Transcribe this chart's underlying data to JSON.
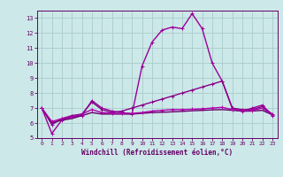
{
  "xlabel": "Windchill (Refroidissement éolien,°C)",
  "x": [
    0,
    1,
    2,
    3,
    4,
    5,
    6,
    7,
    8,
    9,
    10,
    11,
    12,
    13,
    14,
    15,
    16,
    17,
    18,
    19,
    20,
    21,
    22,
    23
  ],
  "series": [
    {
      "y": [
        7.0,
        5.3,
        6.2,
        6.4,
        6.5,
        7.5,
        7.0,
        6.8,
        6.7,
        6.6,
        9.8,
        11.4,
        12.2,
        12.4,
        12.3,
        13.3,
        12.3,
        10.0,
        8.8,
        7.0,
        6.8,
        7.0,
        7.2,
        6.5
      ],
      "color": "#990099",
      "lw": 1.0,
      "marker": "+"
    },
    {
      "y": [
        7.0,
        5.9,
        6.3,
        6.5,
        6.6,
        7.4,
        6.9,
        6.7,
        6.8,
        7.0,
        7.2,
        7.4,
        7.6,
        7.8,
        8.0,
        8.2,
        8.4,
        8.6,
        8.8,
        7.0,
        6.9,
        6.9,
        7.1,
        6.6
      ],
      "color": "#880088",
      "lw": 1.0,
      "marker": "+"
    },
    {
      "y": [
        7.0,
        6.0,
        6.2,
        6.3,
        6.5,
        6.7,
        6.6,
        6.6,
        6.6,
        6.6,
        6.65,
        6.7,
        6.72,
        6.75,
        6.78,
        6.82,
        6.85,
        6.88,
        6.9,
        6.85,
        6.8,
        6.8,
        6.85,
        6.55
      ],
      "color": "#660066",
      "lw": 1.0,
      "marker": null
    },
    {
      "y": [
        7.0,
        6.1,
        6.3,
        6.4,
        6.6,
        6.9,
        6.7,
        6.65,
        6.65,
        6.65,
        6.7,
        6.8,
        6.85,
        6.9,
        6.9,
        6.92,
        6.95,
        7.0,
        7.05,
        6.9,
        6.85,
        6.85,
        7.0,
        6.55
      ],
      "color": "#aa00aa",
      "lw": 1.0,
      "marker": "+"
    }
  ],
  "ylim": [
    5,
    13.5
  ],
  "yticks": [
    5,
    6,
    7,
    8,
    9,
    10,
    11,
    12,
    13
  ],
  "xlim": [
    -0.5,
    23.5
  ],
  "bg_color": "#cce8e8",
  "grid_color": "#aacccc",
  "tick_color": "#660066",
  "label_color": "#660066"
}
